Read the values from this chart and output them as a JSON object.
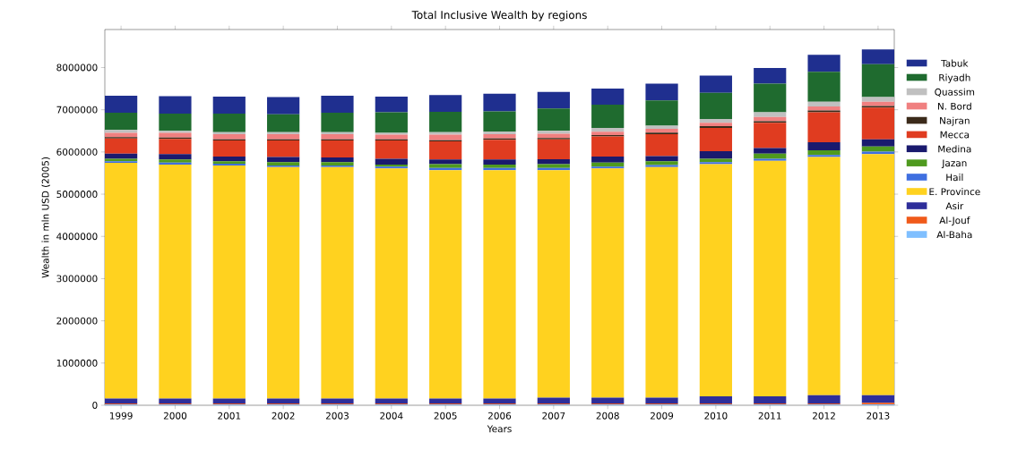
{
  "chart_data": {
    "type": "bar",
    "stacked": true,
    "title": "Total Inclusive Wealth by regions",
    "xlabel": "Years",
    "ylabel": "Wealth in mln USD (2005)",
    "categories": [
      "1999",
      "2000",
      "2001",
      "2002",
      "2003",
      "2004",
      "2005",
      "2006",
      "2007",
      "2008",
      "2009",
      "2010",
      "2011",
      "2012",
      "2013"
    ],
    "series": [
      {
        "name": "Al-Baha",
        "color": "#7fbfff",
        "values": [
          20000,
          20000,
          20000,
          20000,
          20000,
          20000,
          20000,
          20000,
          20000,
          20000,
          20000,
          20000,
          20000,
          20000,
          20000
        ]
      },
      {
        "name": "Al-Jouf",
        "color": "#f05a1a",
        "values": [
          20000,
          20000,
          20000,
          20000,
          20000,
          20000,
          20000,
          20000,
          20000,
          20000,
          20000,
          20000,
          20000,
          20000,
          40000
        ]
      },
      {
        "name": "Asir",
        "color": "#2e2e9a",
        "values": [
          120000,
          120000,
          120000,
          120000,
          120000,
          120000,
          120000,
          120000,
          140000,
          140000,
          140000,
          170000,
          170000,
          200000,
          180000
        ]
      },
      {
        "name": "E. Province",
        "color": "#ffd21f",
        "values": [
          5580000,
          5540000,
          5520000,
          5480000,
          5480000,
          5450000,
          5410000,
          5410000,
          5390000,
          5430000,
          5460000,
          5500000,
          5580000,
          5640000,
          5710000
        ]
      },
      {
        "name": "Hail",
        "color": "#3f6fe0",
        "values": [
          40000,
          50000,
          40000,
          40000,
          40000,
          40000,
          50000,
          50000,
          50000,
          40000,
          50000,
          50000,
          50000,
          50000,
          60000
        ]
      },
      {
        "name": "Jazan",
        "color": "#4f9a1f",
        "values": [
          60000,
          70000,
          60000,
          80000,
          80000,
          50000,
          90000,
          80000,
          90000,
          100000,
          90000,
          80000,
          120000,
          110000,
          120000
        ]
      },
      {
        "name": "Medina",
        "color": "#1a1a6e",
        "values": [
          120000,
          130000,
          110000,
          120000,
          110000,
          140000,
          110000,
          120000,
          120000,
          140000,
          120000,
          180000,
          130000,
          190000,
          170000
        ]
      },
      {
        "name": "Mecca",
        "color": "#e03c20",
        "values": [
          360000,
          360000,
          380000,
          390000,
          400000,
          430000,
          430000,
          470000,
          470000,
          480000,
          520000,
          550000,
          600000,
          710000,
          750000
        ]
      },
      {
        "name": "Najran",
        "color": "#3b2a1a",
        "values": [
          30000,
          30000,
          30000,
          30000,
          30000,
          30000,
          30000,
          30000,
          30000,
          30000,
          40000,
          40000,
          40000,
          40000,
          40000
        ]
      },
      {
        "name": "N. Bord",
        "color": "#f08080",
        "values": [
          100000,
          110000,
          120000,
          120000,
          120000,
          110000,
          130000,
          100000,
          100000,
          80000,
          90000,
          80000,
          100000,
          100000,
          100000
        ]
      },
      {
        "name": "Quassim",
        "color": "#c0c0c0",
        "values": [
          70000,
          50000,
          50000,
          50000,
          50000,
          40000,
          60000,
          60000,
          70000,
          90000,
          70000,
          90000,
          110000,
          110000,
          110000
        ]
      },
      {
        "name": "Riyadh",
        "color": "#1f6b2f",
        "values": [
          410000,
          410000,
          440000,
          420000,
          460000,
          490000,
          480000,
          480000,
          530000,
          550000,
          600000,
          620000,
          680000,
          710000,
          780000
        ]
      },
      {
        "name": "Tabuk",
        "color": "#1f2f8f",
        "values": [
          400000,
          410000,
          400000,
          410000,
          400000,
          370000,
          400000,
          420000,
          390000,
          380000,
          400000,
          410000,
          370000,
          400000,
          350000
        ]
      }
    ],
    "ylim": [
      0,
      8900000
    ],
    "yticks": [
      0,
      1000000,
      2000000,
      3000000,
      4000000,
      5000000,
      6000000,
      7000000,
      8000000
    ],
    "legend": "right"
  }
}
